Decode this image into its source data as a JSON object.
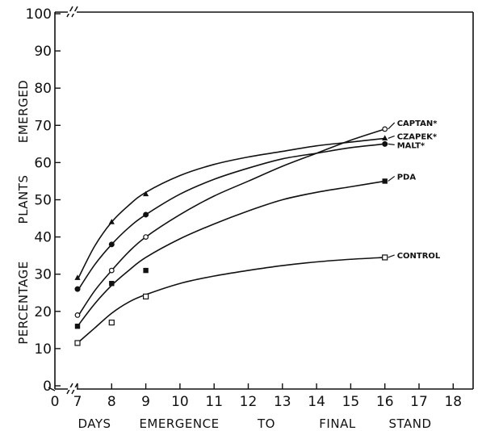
{
  "chart_data": {
    "type": "line",
    "title": "",
    "xlabel": [
      "DAYS",
      "EMERGENCE",
      "TO",
      "FINAL",
      "STAND"
    ],
    "ylabel": [
      "PERCENTAGE",
      "PLANTS",
      "EMERGED"
    ],
    "xlim": [
      6.6,
      18.5
    ],
    "ylim": [
      -1,
      100
    ],
    "x_ticks": [
      0,
      7,
      8,
      9,
      10,
      11,
      12,
      13,
      14,
      15,
      16,
      17,
      18
    ],
    "x_tick_labels": [
      "0",
      "7",
      "8",
      "9",
      "10",
      "11",
      "12",
      "13",
      "14",
      "15",
      "16",
      "17",
      "18"
    ],
    "y_ticks": [
      0,
      10,
      20,
      30,
      40,
      50,
      60,
      70,
      80,
      90,
      100
    ],
    "y_tick_labels": [
      "0",
      "10",
      "20",
      "30",
      "40",
      "50",
      "60",
      "70",
      "80",
      "90",
      "100"
    ],
    "axis_breaks": true,
    "grid": false,
    "legend": "direct labels at right end of curves",
    "series": [
      {
        "name": "CAPTAN*",
        "marker": "open-circle",
        "x": [
          7,
          8,
          9,
          16
        ],
        "y": [
          19,
          31,
          40,
          69
        ],
        "curve_x": [
          7,
          7.5,
          8,
          8.5,
          9,
          10,
          11,
          12,
          13,
          14,
          15,
          16
        ],
        "curve_y": [
          18.5,
          25.5,
          31,
          36,
          40,
          46,
          51,
          55,
          59,
          62.5,
          66,
          69
        ]
      },
      {
        "name": "CZAPEK*",
        "marker": "filled-triangle",
        "x": [
          7,
          8,
          9,
          16
        ],
        "y": [
          29,
          44,
          51.5,
          66.5
        ],
        "curve_x": [
          7,
          7.5,
          8,
          8.5,
          9,
          10,
          11,
          12,
          13,
          14,
          15,
          16
        ],
        "curve_y": [
          28.5,
          37.5,
          44,
          48.5,
          52,
          56.5,
          59.5,
          61.5,
          63,
          64.5,
          65.5,
          66.5
        ]
      },
      {
        "name": "MALT*",
        "marker": "filled-circle",
        "x": [
          7,
          8,
          9,
          16
        ],
        "y": [
          26,
          38,
          46,
          65
        ],
        "curve_x": [
          7,
          7.5,
          8,
          8.5,
          9,
          10,
          11,
          12,
          13,
          14,
          15,
          16
        ],
        "curve_y": [
          25.5,
          32.5,
          38,
          42.5,
          46,
          51.5,
          55.5,
          58.5,
          61,
          62.5,
          64,
          65
        ]
      },
      {
        "name": "PDA",
        "marker": "filled-square",
        "x": [
          7,
          8,
          9,
          16
        ],
        "y": [
          16,
          27.5,
          31,
          55
        ],
        "curve_x": [
          7,
          7.5,
          8,
          8.5,
          9,
          10,
          11,
          12,
          13,
          14,
          15,
          16
        ],
        "curve_y": [
          16,
          22,
          27,
          31,
          34.5,
          39.5,
          43.5,
          47,
          50,
          52,
          53.5,
          55
        ]
      },
      {
        "name": "CONTROL",
        "marker": "open-square",
        "x": [
          7,
          8,
          9,
          16
        ],
        "y": [
          11.5,
          17,
          24,
          34.5
        ],
        "curve_x": [
          7,
          7.5,
          8,
          8.5,
          9,
          10,
          11,
          12,
          13,
          14,
          15,
          16
        ],
        "curve_y": [
          11.5,
          15.5,
          19.5,
          22.5,
          24.5,
          27.5,
          29.5,
          31,
          32.3,
          33.3,
          34,
          34.5
        ]
      }
    ]
  }
}
